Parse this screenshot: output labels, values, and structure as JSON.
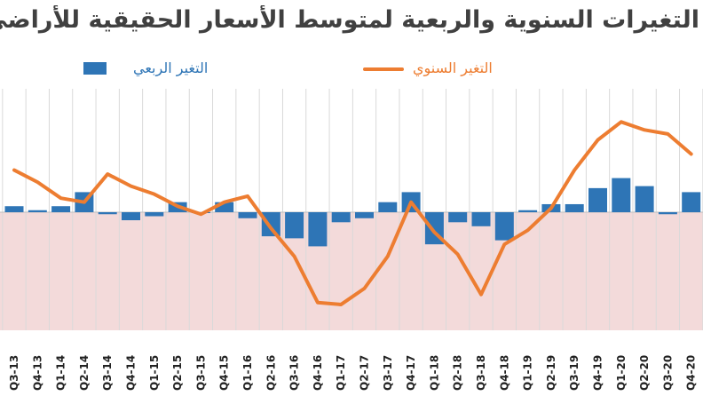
{
  "title": "التغيرات السنوية والربعية لمتوسط الأسعار الحقيقية للأراضي السكنية",
  "colors": {
    "annual_line": "#ED7D31",
    "quarterly_bar": "#2E75B6",
    "negative_band": "#F3DADA",
    "grid": "#D9D9D9",
    "background": "#FFFFFF"
  },
  "chart_data": {
    "type": "bar+line",
    "title": "التغيرات السنوية والربعية لمتوسط الأسعار الحقيقية للأراضي السكنية",
    "categories": [
      "Q3-13",
      "Q4-13",
      "Q1-14",
      "Q2-14",
      "Q3-14",
      "Q4-14",
      "Q1-15",
      "Q2-15",
      "Q3-15",
      "Q4-15",
      "Q1-16",
      "Q2-16",
      "Q3-16",
      "Q4-16",
      "Q1-17",
      "Q2-17",
      "Q3-17",
      "Q4-17",
      "Q1-18",
      "Q2-18",
      "Q3-18",
      "Q4-18",
      "Q1-19",
      "Q2-19",
      "Q3-19",
      "Q4-19",
      "Q1-20",
      "Q2-20",
      "Q3-20",
      "Q4-20"
    ],
    "series": [
      {
        "name": "التغير الربعي",
        "kind": "bar",
        "values": [
          0.3,
          0.1,
          0.3,
          1.0,
          -0.1,
          -0.4,
          -0.2,
          0.5,
          0.0,
          0.5,
          -0.3,
          -1.2,
          -1.3,
          -1.7,
          -0.5,
          -0.3,
          0.5,
          1.0,
          -1.6,
          -0.5,
          -0.7,
          -1.4,
          0.1,
          0.4,
          0.4,
          1.2,
          1.7,
          1.3,
          -0.1,
          1.0
        ]
      },
      {
        "name": "التغير السنوي",
        "kind": "line",
        "values": [
          2.1,
          1.5,
          0.7,
          0.5,
          1.9,
          1.3,
          0.9,
          0.3,
          -0.1,
          0.5,
          0.8,
          -0.8,
          -2.2,
          -4.5,
          -4.6,
          -3.8,
          -2.2,
          0.5,
          -1.0,
          -2.1,
          -4.1,
          -1.6,
          -0.9,
          0.2,
          2.1,
          3.6,
          4.5,
          4.1,
          3.9,
          2.9
        ]
      }
    ],
    "ylim": [
      -5,
      6
    ],
    "negative_region_shaded": true,
    "grid": "vertical lines between quarters",
    "legend": "top"
  }
}
